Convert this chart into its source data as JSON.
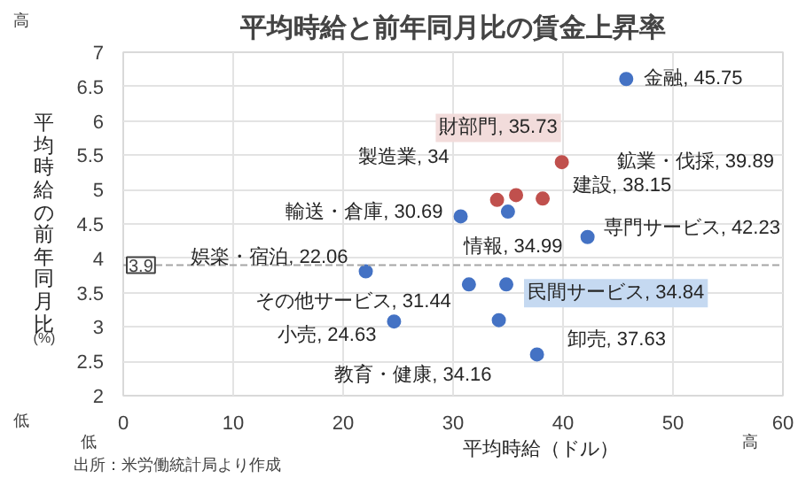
{
  "chart_data": {
    "type": "scatter",
    "title": "平均時給と前年同月比の賃金上昇率",
    "xlabel": "平均時給（ドル）",
    "ylabel": "平均時給の前年同月比",
    "annotations": [
      "(%)",
      "高",
      "低",
      "低",
      "高",
      "出所：米労働統計局より作成",
      {
        "text": "金融, 45.75",
        "x": 45.75,
        "y": 6.61
      },
      {
        "text": "鉱業・伐採, 39.89",
        "x": 39.89,
        "y": 5.4
      },
      {
        "text": "財部門, 35.73",
        "x": 35.73,
        "y": 4.92
      },
      {
        "text": "製造業, 34",
        "x": 34,
        "y": 4.85
      },
      {
        "text": "建設, 38.15",
        "x": 38.15,
        "y": 4.87
      },
      {
        "text": "輸送・倉庫, 30.69",
        "x": 30.69,
        "y": 4.61
      },
      {
        "text": "情報, 34.99",
        "x": 34.99,
        "y": 4.68
      },
      {
        "text": "専門サービス, 42.23",
        "x": 42.23,
        "y": 4.31
      },
      {
        "text": "娯楽・宿泊, 22.06",
        "x": 22.06,
        "y": 3.81
      },
      {
        "text": "民間サービス, 34.84",
        "x": 34.84,
        "y": 3.62
      },
      {
        "text": "その他サービス, 31.44",
        "x": 31.44,
        "y": 3.62
      },
      {
        "text": "小売, 24.63",
        "x": 24.63,
        "y": 3.08
      },
      {
        "text": "教育・健康, 34.16",
        "x": 34.16,
        "y": 3.1
      },
      {
        "text": "卸売, 37.63",
        "x": 37.63,
        "y": 2.6
      }
    ],
    "x": [
      45.75,
      39.89,
      35.73,
      34,
      38.15,
      30.69,
      34.99,
      42.23,
      22.06,
      34.84,
      31.44,
      24.63,
      34.16,
      37.63
    ],
    "values": [
      6.61,
      5.4,
      4.92,
      4.85,
      4.87,
      4.61,
      4.68,
      4.31,
      3.81,
      3.62,
      3.62,
      3.08,
      3.1,
      2.6
    ],
    "colors": [
      "#4472c4",
      "#c0504d",
      "#c0504d",
      "#c0504d",
      "#c0504d",
      "#4472c4",
      "#4472c4",
      "#4472c4",
      "#4472c4",
      "#4472c4",
      "#4472c4",
      "#4472c4",
      "#4472c4",
      "#4472c4"
    ],
    "xlim": [
      0,
      60
    ],
    "ylim": [
      2,
      7
    ],
    "xticks": [
      0,
      10,
      20,
      30,
      40,
      50,
      60
    ],
    "yticks": [
      2,
      2.5,
      3,
      3.5,
      4,
      4.5,
      5,
      5.5,
      6,
      6.5,
      7
    ],
    "ref_lines": [
      {
        "axis": "y",
        "value": 3.9,
        "label": "3.9",
        "color": "#a6a6a6",
        "line_style": "dashed"
      }
    ],
    "grid": true,
    "marker": "circle"
  }
}
